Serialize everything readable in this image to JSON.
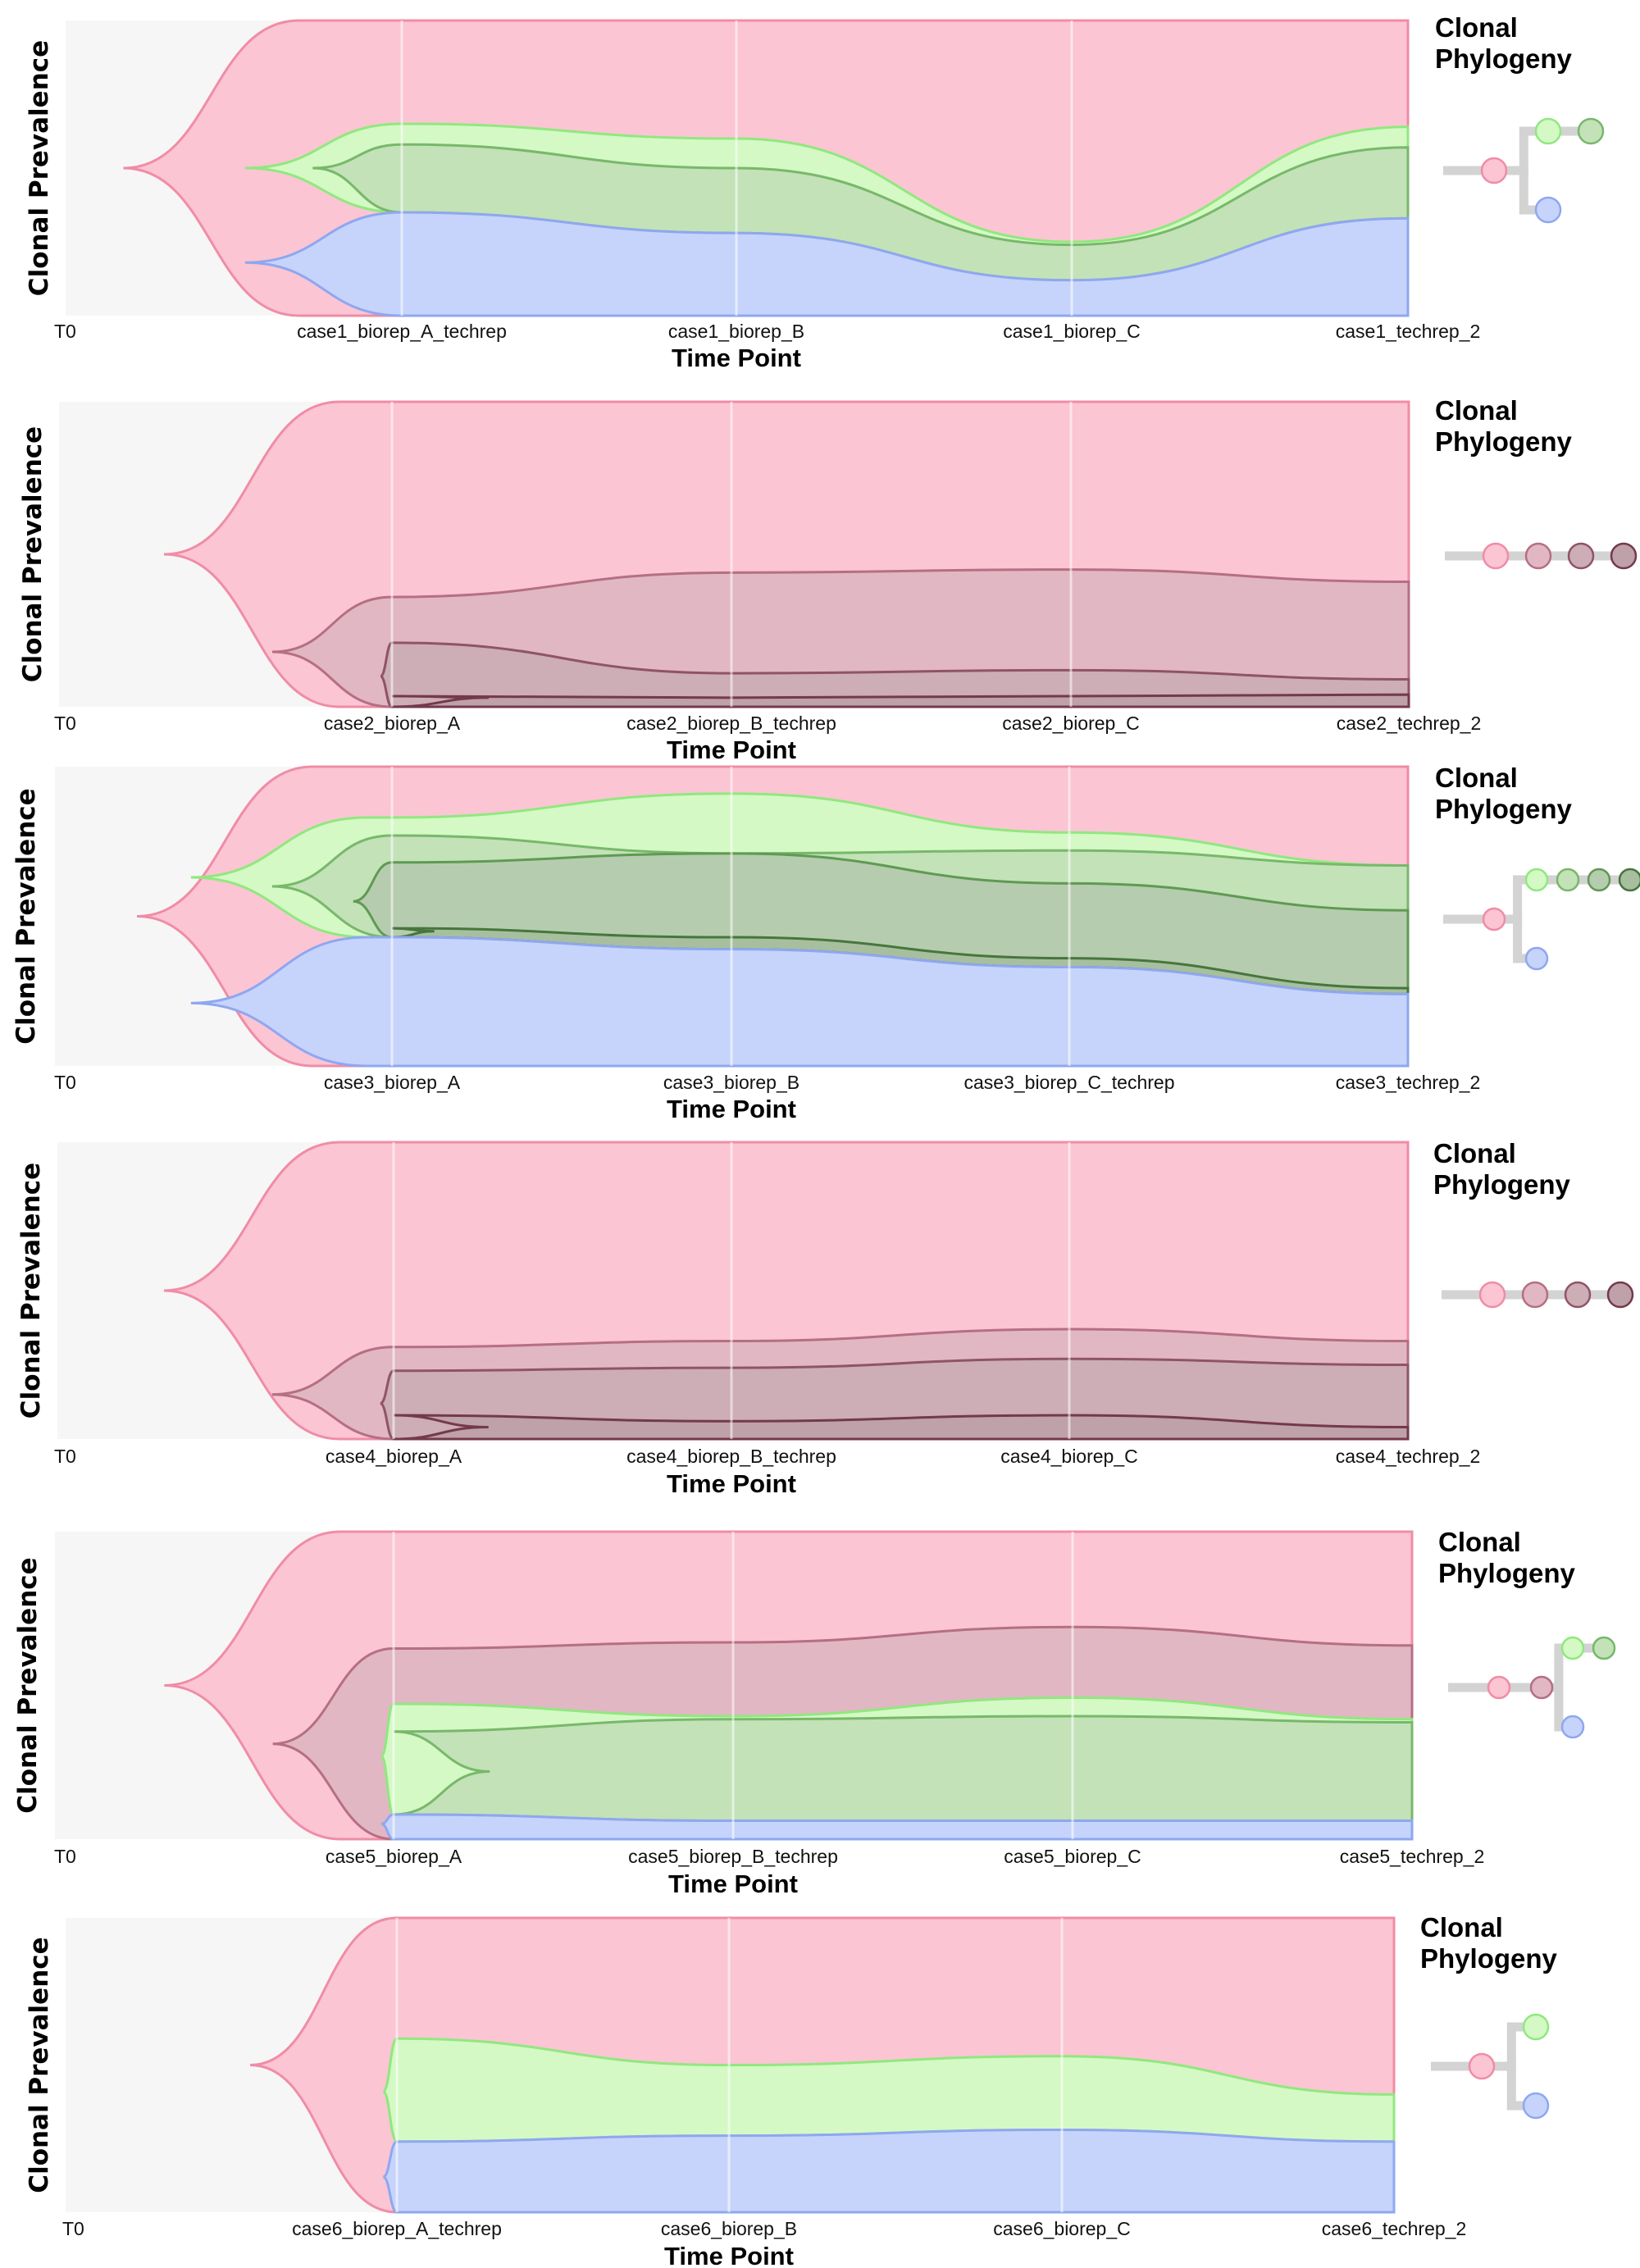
{
  "colors": {
    "plot_bg": "#f6f6f6",
    "branch": "#d3d3d3"
  },
  "chart_data": [
    {
      "type": "area",
      "subtype": "fishplot",
      "ylabel": "Clonal Prevalence",
      "xlabel": "Time Point",
      "legend_title_lines": [
        "Clonal",
        "Phylogeny"
      ],
      "legend_position": "right",
      "x": [
        "T0",
        "case1_biorep_A_techrep",
        "case1_biorep_B",
        "case1_biorep_C",
        "case1_techrep_2"
      ],
      "clones": [
        {
          "name": "clone1",
          "parent": null,
          "fill": "#fbc5d3",
          "stroke": "#f08ca6",
          "emerge": 0.05,
          "top": [
            0,
            0,
            0,
            0,
            0
          ],
          "bottom": [
            1,
            1,
            1,
            1,
            1
          ]
        },
        {
          "name": "clone2",
          "parent": "clone1",
          "fill": "#d4f9c5",
          "stroke": "#90e87f",
          "emerge": 0.14,
          "top": [
            0.5,
            0.35,
            0.4,
            0.75,
            0.36
          ],
          "bottom": [
            0.5,
            0.65,
            0.72,
            0.88,
            0.67
          ]
        },
        {
          "name": "clone3",
          "parent": "clone2",
          "fill": "#c3e2b8",
          "stroke": "#78b86a",
          "emerge": 0.19,
          "top": [
            0.5,
            0.42,
            0.5,
            0.76,
            0.43
          ],
          "bottom": [
            0.5,
            0.65,
            0.72,
            0.88,
            0.67
          ]
        },
        {
          "name": "clone4",
          "parent": "clone1",
          "fill": "#c6d4fb",
          "stroke": "#8fa7f0",
          "emerge": 0.14,
          "top": [
            0.82,
            0.65,
            0.72,
            0.88,
            0.67
          ],
          "bottom": [
            0.82,
            1,
            1,
            1,
            1
          ]
        }
      ],
      "phylogeny": {
        "nodes": [
          {
            "clone": "clone1",
            "col": 0,
            "row": 0
          },
          {
            "clone": "clone2",
            "col": 1,
            "row": -1
          },
          {
            "clone": "clone3",
            "col": 2,
            "row": -1
          },
          {
            "clone": "clone4",
            "col": 1,
            "row": 1
          }
        ]
      }
    },
    {
      "type": "area",
      "subtype": "fishplot",
      "ylabel": "Clonal Prevalence",
      "xlabel": "Time Point",
      "legend_title_lines": [
        "Clonal",
        "Phylogeny"
      ],
      "legend_position": "right",
      "x": [
        "T0",
        "case2_biorep_A",
        "case2_biorep_B_techrep",
        "case2_biorep_C",
        "case2_techrep_2"
      ],
      "clones": [
        {
          "name": "clone1",
          "parent": null,
          "fill": "#fbc5d3",
          "stroke": "#f08ca6",
          "emerge": 0.08,
          "top": [
            0,
            0,
            0,
            0,
            0
          ],
          "bottom": [
            1,
            1,
            1,
            1,
            1
          ]
        },
        {
          "name": "clone2",
          "parent": "clone1",
          "fill": "#e1b7c3",
          "stroke": "#b56f84",
          "emerge": 0.16,
          "top": [
            0.82,
            0.64,
            0.56,
            0.55,
            0.59
          ],
          "bottom": [
            0.82,
            1,
            1,
            1,
            1
          ]
        },
        {
          "name": "clone3",
          "parent": "clone2",
          "fill": "#cdadb6",
          "stroke": "#8f5468",
          "emerge": 0.24,
          "top": [
            0.9,
            0.79,
            0.89,
            0.88,
            0.91
          ],
          "bottom": [
            0.9,
            1,
            1,
            1,
            1
          ]
        },
        {
          "name": "clone4",
          "parent": "clone3",
          "fill": "#bea1a9",
          "stroke": "#74394c",
          "emerge": 0.32,
          "top": [
            0.97,
            0.965,
            0.97,
            0.965,
            0.96
          ],
          "bottom": [
            0.97,
            1,
            1,
            1,
            1
          ]
        }
      ],
      "phylogeny": {
        "nodes": [
          {
            "clone": "clone1",
            "col": 0,
            "row": 0
          },
          {
            "clone": "clone2",
            "col": 1,
            "row": 0
          },
          {
            "clone": "clone3",
            "col": 2,
            "row": 0
          },
          {
            "clone": "clone4",
            "col": 3,
            "row": 0
          }
        ]
      }
    },
    {
      "type": "area",
      "subtype": "fishplot",
      "ylabel": "Clonal Prevalence",
      "xlabel": "Time Point",
      "legend_title_lines": [
        "Clonal",
        "Phylogeny"
      ],
      "legend_position": "right",
      "x": [
        "T0",
        "case3_biorep_A",
        "case3_biorep_B",
        "case3_biorep_C_techrep",
        "case3_techrep_2"
      ],
      "clones": [
        {
          "name": "clone1",
          "parent": null,
          "fill": "#fbc5d3",
          "stroke": "#f08ca6",
          "emerge": 0.06,
          "top": [
            0,
            0,
            0,
            0,
            0
          ],
          "bottom": [
            1,
            1,
            1,
            1,
            1
          ]
        },
        {
          "name": "clone2",
          "parent": "clone1",
          "fill": "#d4f9c5",
          "stroke": "#90e87f",
          "emerge": 0.1,
          "top": [
            0.37,
            0.17,
            0.09,
            0.22,
            0.33
          ],
          "bottom": [
            0.37,
            0.57,
            0.61,
            0.67,
            0.76
          ]
        },
        {
          "name": "clone3",
          "parent": "clone2",
          "fill": "#c3e2b8",
          "stroke": "#78b86a",
          "emerge": 0.16,
          "top": [
            0.4,
            0.23,
            0.29,
            0.28,
            0.33
          ],
          "bottom": [
            0.4,
            0.57,
            0.61,
            0.67,
            0.76
          ]
        },
        {
          "name": "clone4",
          "parent": "clone3",
          "fill": "#b5cdae",
          "stroke": "#5f9a53",
          "emerge": 0.22,
          "top": [
            0.45,
            0.32,
            0.29,
            0.39,
            0.48
          ],
          "bottom": [
            0.45,
            0.57,
            0.61,
            0.67,
            0.76
          ]
        },
        {
          "name": "clone5",
          "parent": "clone4",
          "fill": "#a7bf9f",
          "stroke": "#46763c",
          "emerge": 0.28,
          "top": [
            0.55,
            0.54,
            0.57,
            0.64,
            0.74
          ],
          "bottom": [
            0.55,
            0.57,
            0.61,
            0.67,
            0.76
          ]
        },
        {
          "name": "clone6",
          "parent": "clone1",
          "fill": "#c6d4fb",
          "stroke": "#8fa7f0",
          "emerge": 0.1,
          "top": [
            0.79,
            0.57,
            0.61,
            0.67,
            0.76
          ],
          "bottom": [
            0.79,
            1,
            1,
            1,
            1
          ]
        }
      ],
      "phylogeny": {
        "nodes": [
          {
            "clone": "clone1",
            "col": 0,
            "row": 0
          },
          {
            "clone": "clone2",
            "col": 1,
            "row": -1
          },
          {
            "clone": "clone3",
            "col": 2,
            "row": -1
          },
          {
            "clone": "clone4",
            "col": 3,
            "row": -1
          },
          {
            "clone": "clone5",
            "col": 4,
            "row": -1
          },
          {
            "clone": "clone6",
            "col": 1,
            "row": 1
          }
        ]
      }
    },
    {
      "type": "area",
      "subtype": "fishplot",
      "ylabel": "Clonal Prevalence",
      "xlabel": "Time Point",
      "legend_title_lines": [
        "Clonal",
        "Phylogeny"
      ],
      "legend_position": "right",
      "x": [
        "T0",
        "case4_biorep_A",
        "case4_biorep_B_techrep",
        "case4_biorep_C",
        "case4_techrep_2"
      ],
      "clones": [
        {
          "name": "clone1",
          "parent": null,
          "fill": "#fbc5d3",
          "stroke": "#f08ca6",
          "emerge": 0.08,
          "top": [
            0,
            0,
            0,
            0,
            0
          ],
          "bottom": [
            1,
            1,
            1,
            1,
            1
          ]
        },
        {
          "name": "clone2",
          "parent": "clone1",
          "fill": "#e1b7c3",
          "stroke": "#b56f84",
          "emerge": 0.16,
          "top": [
            0.85,
            0.69,
            0.67,
            0.63,
            0.67
          ],
          "bottom": [
            0.85,
            1,
            1,
            1,
            1
          ]
        },
        {
          "name": "clone3",
          "parent": "clone2",
          "fill": "#cdadb6",
          "stroke": "#8f5468",
          "emerge": 0.24,
          "top": [
            0.88,
            0.77,
            0.76,
            0.73,
            0.75
          ],
          "bottom": [
            0.88,
            1,
            1,
            1,
            1
          ]
        },
        {
          "name": "clone4",
          "parent": "clone3",
          "fill": "#bea1a9",
          "stroke": "#74394c",
          "emerge": 0.32,
          "top": [
            0.96,
            0.92,
            0.94,
            0.92,
            0.96
          ],
          "bottom": [
            0.96,
            1,
            1,
            1,
            1
          ]
        }
      ],
      "phylogeny": {
        "nodes": [
          {
            "clone": "clone1",
            "col": 0,
            "row": 0
          },
          {
            "clone": "clone2",
            "col": 1,
            "row": 0
          },
          {
            "clone": "clone3",
            "col": 2,
            "row": 0
          },
          {
            "clone": "clone4",
            "col": 3,
            "row": 0
          }
        ]
      }
    },
    {
      "type": "area",
      "subtype": "fishplot",
      "ylabel": "Clonal Prevalence",
      "xlabel": "Time Point",
      "legend_title_lines": [
        "Clonal",
        "Phylogeny"
      ],
      "legend_position": "right",
      "x": [
        "T0",
        "case5_biorep_A",
        "case5_biorep_B_techrep",
        "case5_biorep_C",
        "case5_techrep_2"
      ],
      "clones": [
        {
          "name": "clone1",
          "parent": null,
          "fill": "#fbc5d3",
          "stroke": "#f08ca6",
          "emerge": 0.08,
          "top": [
            0,
            0,
            0,
            0,
            0
          ],
          "bottom": [
            1,
            1,
            1,
            1,
            1
          ]
        },
        {
          "name": "clone2",
          "parent": "clone1",
          "fill": "#e1b7c3",
          "stroke": "#b56f84",
          "emerge": 0.16,
          "top": [
            0.69,
            0.38,
            0.36,
            0.31,
            0.37
          ],
          "bottom": [
            0.69,
            1,
            1,
            1,
            1
          ]
        },
        {
          "name": "clone3",
          "parent": "clone2",
          "fill": "#d4f9c5",
          "stroke": "#90e87f",
          "emerge": 0.24,
          "top": [
            0.73,
            0.56,
            0.6,
            0.54,
            0.61
          ],
          "bottom": [
            0.73,
            0.92,
            0.94,
            0.94,
            0.94
          ]
        },
        {
          "name": "clone4",
          "parent": "clone3",
          "fill": "#c3e2b8",
          "stroke": "#78b86a",
          "emerge": 0.32,
          "top": [
            0.78,
            0.65,
            0.61,
            0.6,
            0.62
          ],
          "bottom": [
            0.78,
            0.92,
            0.94,
            0.94,
            0.94
          ]
        },
        {
          "name": "clone5",
          "parent": "clone2",
          "fill": "#c6d4fb",
          "stroke": "#8fa7f0",
          "emerge": 0.24,
          "top": [
            0.95,
            0.92,
            0.94,
            0.94,
            0.94
          ],
          "bottom": [
            0.95,
            1,
            1,
            1,
            1
          ]
        }
      ],
      "phylogeny": {
        "nodes": [
          {
            "clone": "clone1",
            "col": 0,
            "row": 0
          },
          {
            "clone": "clone2",
            "col": 1,
            "row": 0
          },
          {
            "clone": "clone3",
            "col": 2,
            "row": -1
          },
          {
            "clone": "clone4",
            "col": 3,
            "row": -1
          },
          {
            "clone": "clone5",
            "col": 2,
            "row": 1
          }
        ]
      }
    },
    {
      "type": "area",
      "subtype": "fishplot",
      "ylabel": "Clonal Prevalence",
      "xlabel": "Time Point",
      "legend_title_lines": [
        "Clonal",
        "Phylogeny"
      ],
      "legend_position": "right",
      "x": [
        "T0",
        "case6_biorep_A_techrep",
        "case6_biorep_B",
        "case6_biorep_C",
        "case6_techrep_2"
      ],
      "clones": [
        {
          "name": "clone1",
          "parent": null,
          "fill": "#fbc5d3",
          "stroke": "#f08ca6",
          "emerge": 0.14,
          "top": [
            0,
            0,
            0,
            0,
            0
          ],
          "bottom": [
            1,
            1,
            1,
            1,
            1
          ]
        },
        {
          "name": "clone2",
          "parent": "clone1",
          "fill": "#d4f9c5",
          "stroke": "#90e87f",
          "emerge": 0.24,
          "top": [
            0.59,
            0.41,
            0.5,
            0.47,
            0.6
          ],
          "bottom": [
            0.59,
            0.76,
            0.74,
            0.72,
            0.76
          ]
        },
        {
          "name": "clone3",
          "parent": "clone1",
          "fill": "#c6d4fb",
          "stroke": "#8fa7f0",
          "emerge": 0.24,
          "top": [
            0.88,
            0.76,
            0.74,
            0.72,
            0.76
          ],
          "bottom": [
            0.88,
            1,
            1,
            1,
            1
          ]
        }
      ],
      "phylogeny": {
        "nodes": [
          {
            "clone": "clone1",
            "col": 0,
            "row": 0
          },
          {
            "clone": "clone2",
            "col": 1,
            "row": -1
          },
          {
            "clone": "clone3",
            "col": 1,
            "row": 1
          }
        ]
      }
    }
  ]
}
